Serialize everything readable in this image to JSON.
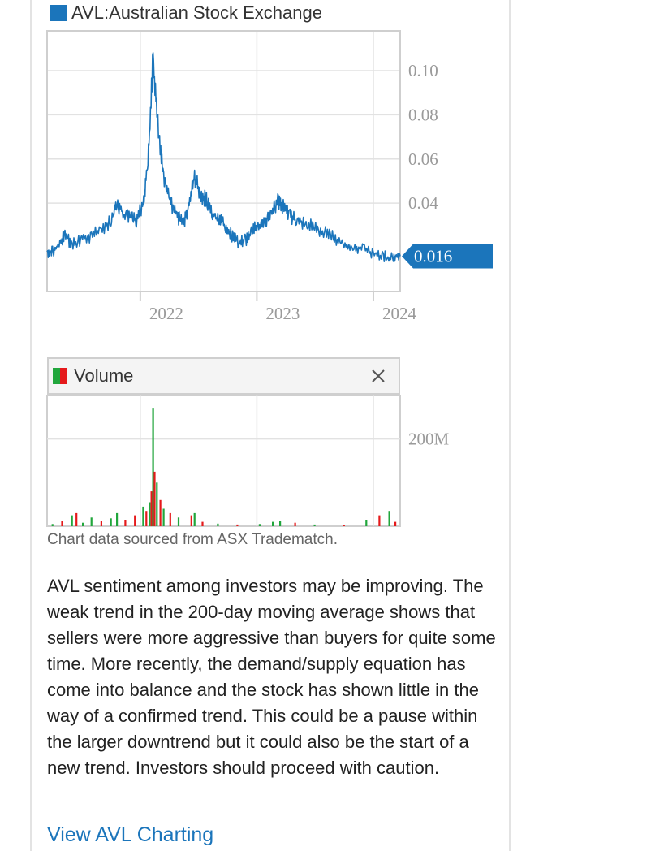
{
  "chart_data": [
    {
      "type": "line",
      "title": "AVL:Australian Stock Exchange",
      "series": [
        {
          "name": "AVL:Australian Stock Exchange",
          "color": "#1b75bb",
          "points": [
            [
              "2021-03-15",
              0.018
            ],
            [
              "2021-04-01",
              0.018
            ],
            [
              "2021-04-20",
              0.021
            ],
            [
              "2021-05-10",
              0.026
            ],
            [
              "2021-06-01",
              0.021
            ],
            [
              "2021-07-01",
              0.024
            ],
            [
              "2021-08-01",
              0.025
            ],
            [
              "2021-09-01",
              0.028
            ],
            [
              "2021-10-01",
              0.032
            ],
            [
              "2021-10-20",
              0.04
            ],
            [
              "2021-11-10",
              0.035
            ],
            [
              "2021-12-01",
              0.034
            ],
            [
              "2021-12-20",
              0.032
            ],
            [
              "2022-01-10",
              0.04
            ],
            [
              "2022-01-25",
              0.058
            ],
            [
              "2022-02-10",
              0.105
            ],
            [
              "2022-02-25",
              0.075
            ],
            [
              "2022-03-15",
              0.052
            ],
            [
              "2022-04-05",
              0.04
            ],
            [
              "2022-04-25",
              0.035
            ],
            [
              "2022-05-15",
              0.03
            ],
            [
              "2022-06-01",
              0.038
            ],
            [
              "2022-06-20",
              0.052
            ],
            [
              "2022-07-10",
              0.043
            ],
            [
              "2022-07-25",
              0.042
            ],
            [
              "2022-08-15",
              0.035
            ],
            [
              "2022-09-05",
              0.032
            ],
            [
              "2022-09-25",
              0.03
            ],
            [
              "2022-10-15",
              0.025
            ],
            [
              "2022-11-05",
              0.022
            ],
            [
              "2022-11-25",
              0.023
            ],
            [
              "2022-12-15",
              0.027
            ],
            [
              "2023-01-05",
              0.03
            ],
            [
              "2023-01-25",
              0.031
            ],
            [
              "2023-02-15",
              0.036
            ],
            [
              "2023-03-10",
              0.041
            ],
            [
              "2023-03-25",
              0.038
            ],
            [
              "2023-04-15",
              0.034
            ],
            [
              "2023-05-05",
              0.032
            ],
            [
              "2023-06-01",
              0.031
            ],
            [
              "2023-07-01",
              0.029
            ],
            [
              "2023-08-01",
              0.027
            ],
            [
              "2023-09-01",
              0.024
            ],
            [
              "2023-10-01",
              0.022
            ],
            [
              "2023-11-01",
              0.02
            ],
            [
              "2023-12-01",
              0.019
            ],
            [
              "2024-01-01",
              0.017
            ],
            [
              "2024-02-01",
              0.016
            ],
            [
              "2024-03-01",
              0.015
            ],
            [
              "2024-03-25",
              0.016
            ]
          ]
        }
      ],
      "ylim": [
        0.0,
        0.118
      ],
      "y_ticks": [
        "0.10",
        "0.08",
        "0.06",
        "0.04"
      ],
      "x_ticks": [
        "2022",
        "2023",
        "2024"
      ],
      "last_value_label": "0.016",
      "last_value_color": "#1b75bb",
      "grid": true
    },
    {
      "type": "bar",
      "title": "Volume",
      "y_ticks": [
        "200M"
      ],
      "ylim_millions": [
        0,
        300
      ],
      "up_color": "#21a63c",
      "down_color": "#e5191b",
      "bars": [
        [
          "2021-04-01",
          5,
          "up"
        ],
        [
          "2021-05-01",
          12,
          "down"
        ],
        [
          "2021-06-01",
          25,
          "up"
        ],
        [
          "2021-06-15",
          30,
          "down"
        ],
        [
          "2021-07-05",
          8,
          "up"
        ],
        [
          "2021-08-01",
          20,
          "up"
        ],
        [
          "2021-09-01",
          12,
          "down"
        ],
        [
          "2021-10-01",
          18,
          "up"
        ],
        [
          "2021-10-20",
          30,
          "up"
        ],
        [
          "2021-11-15",
          15,
          "down"
        ],
        [
          "2021-12-15",
          25,
          "down"
        ],
        [
          "2022-01-10",
          45,
          "up"
        ],
        [
          "2022-01-20",
          35,
          "down"
        ],
        [
          "2022-01-30",
          55,
          "up"
        ],
        [
          "2022-02-05",
          80,
          "down"
        ],
        [
          "2022-02-10",
          270,
          "up"
        ],
        [
          "2022-02-15",
          125,
          "down"
        ],
        [
          "2022-02-22",
          100,
          "up"
        ],
        [
          "2022-03-05",
          60,
          "down"
        ],
        [
          "2022-03-15",
          40,
          "up"
        ],
        [
          "2022-04-05",
          30,
          "down"
        ],
        [
          "2022-05-01",
          20,
          "up"
        ],
        [
          "2022-06-10",
          25,
          "down"
        ],
        [
          "2022-06-20",
          30,
          "up"
        ],
        [
          "2022-07-15",
          10,
          "down"
        ],
        [
          "2022-09-01",
          6,
          "up"
        ],
        [
          "2022-11-01",
          4,
          "down"
        ],
        [
          "2023-01-10",
          5,
          "up"
        ],
        [
          "2023-02-20",
          10,
          "up"
        ],
        [
          "2023-03-15",
          12,
          "up"
        ],
        [
          "2023-05-01",
          8,
          "down"
        ],
        [
          "2023-07-01",
          4,
          "up"
        ],
        [
          "2023-10-01",
          3,
          "down"
        ],
        [
          "2023-12-10",
          15,
          "up"
        ],
        [
          "2024-01-20",
          25,
          "down"
        ],
        [
          "2024-02-20",
          35,
          "up"
        ],
        [
          "2024-03-10",
          10,
          "down"
        ]
      ]
    }
  ],
  "header": {
    "price_legend": "AVL:Australian Stock Exchange",
    "volume_legend": "Volume"
  },
  "icons": {
    "close": "close-icon"
  },
  "footer": {
    "source": "Chart data sourced from ASX Tradematch.",
    "analysis": "AVL sentiment among investors may be improving. The weak trend in the 200-day moving average shows that sellers were more aggressive than buyers for quite some time. More recently, the demand/supply equation has come into balance and the stock has shown little in the way of a confirmed trend. This could be a pause within the larger downtrend but it could also be the start of a new trend. Investors should proceed with caution.",
    "link": "View AVL Charting"
  }
}
